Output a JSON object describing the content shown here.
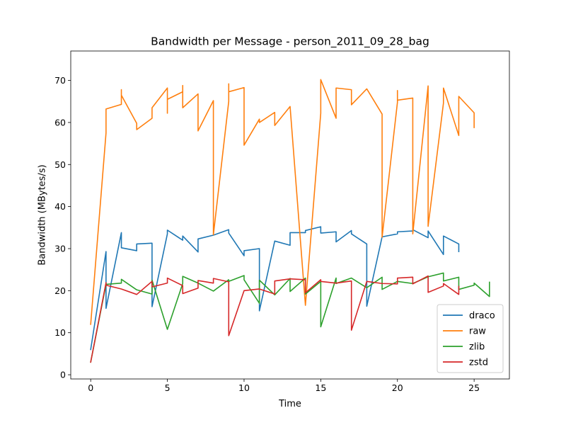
{
  "chart_data": {
    "type": "line",
    "title": "Bandwidth per Message - person_2011_09_28_bag",
    "xlabel": "Time",
    "ylabel": "Bandwidth (MBytes/s)",
    "xlim": [
      -1.3,
      27.3
    ],
    "ylim": [
      -1,
      77
    ],
    "xticks": [
      0,
      5,
      10,
      15,
      20,
      25
    ],
    "yticks": [
      0,
      10,
      20,
      30,
      40,
      50,
      60,
      70
    ],
    "grid": false,
    "legend_position": "lower right",
    "series": [
      {
        "name": "draco",
        "color": "#1f77b4",
        "x": [
          0,
          1,
          1,
          2,
          2,
          3,
          3,
          4,
          4,
          5,
          5,
          6,
          6,
          7,
          7,
          8,
          9,
          9,
          10,
          10,
          11,
          11,
          12,
          13,
          13,
          14,
          14,
          15,
          15,
          16,
          16,
          17,
          17,
          18,
          18,
          19,
          19,
          20,
          20,
          21,
          21,
          22,
          22,
          23,
          23,
          24,
          24
        ],
        "y": [
          6,
          29.3,
          15.8,
          33.8,
          30.2,
          29.5,
          31.1,
          31.3,
          16.2,
          33.5,
          34.4,
          32,
          33,
          29.2,
          32.3,
          33.2,
          34.5,
          33.7,
          28.3,
          29.5,
          30,
          15.2,
          31.8,
          30.8,
          33.8,
          33.8,
          34.3,
          35.2,
          33.7,
          34,
          31.6,
          34.3,
          33.5,
          31.1,
          16.3,
          32.8,
          32.8,
          33.5,
          34,
          34.2,
          34.5,
          32.6,
          34.2,
          28.6,
          33,
          31.1,
          29.3
        ]
      },
      {
        "name": "raw",
        "color": "#ff7f0e",
        "x": [
          0,
          1,
          1,
          1,
          2,
          2,
          2,
          3,
          3,
          4,
          4,
          5,
          5,
          5,
          6,
          6,
          6,
          7,
          7,
          8,
          8,
          9,
          9,
          9,
          10,
          10,
          11,
          11,
          12,
          12,
          13,
          14,
          15,
          15,
          16,
          16,
          17,
          17,
          18,
          19,
          19,
          20,
          20,
          20,
          21,
          21,
          22,
          22,
          23,
          23,
          24,
          24,
          25,
          25
        ],
        "y": [
          12,
          57.5,
          63,
          63.2,
          64.3,
          67.8,
          66.5,
          59.8,
          58.3,
          61,
          63.5,
          68.2,
          62.2,
          65.5,
          67.3,
          68.8,
          63.5,
          66.8,
          58,
          65.2,
          33.3,
          65,
          69.2,
          67.3,
          68.3,
          54.6,
          60.8,
          60,
          62.4,
          59.3,
          63.8,
          16.5,
          62.2,
          70.2,
          61,
          68.2,
          67.8,
          64.2,
          68,
          62,
          32.7,
          64.8,
          67.6,
          65.3,
          65.8,
          33.5,
          68.7,
          35.3,
          64.6,
          68.2,
          56.9,
          66.2,
          62.3,
          58.8
        ]
      },
      {
        "name": "zlib",
        "color": "#2ca02c",
        "x": [
          0,
          1,
          2,
          2,
          3,
          4,
          4,
          5,
          6,
          6,
          7,
          8,
          9,
          9,
          10,
          10,
          11,
          11,
          12,
          13,
          13,
          14,
          14,
          15,
          15,
          16,
          16,
          17,
          18,
          19,
          19,
          20,
          21,
          22,
          23,
          23,
          24,
          24,
          25,
          25,
          26,
          26
        ],
        "y": [
          3,
          21.5,
          21.8,
          22.7,
          20.2,
          19.2,
          22.5,
          10.8,
          21.7,
          23.4,
          21.8,
          19.9,
          22.6,
          22.2,
          23.6,
          22.6,
          17,
          22.5,
          19,
          22.9,
          19.8,
          23,
          19.2,
          22.2,
          11.4,
          23,
          21.7,
          23,
          20.7,
          23.2,
          20.3,
          22.2,
          21.7,
          23.3,
          24.2,
          22.3,
          23.2,
          20.3,
          21.3,
          21.8,
          18.6,
          22
        ]
      },
      {
        "name": "zstd",
        "color": "#d62728",
        "x": [
          0,
          1,
          1,
          2,
          3,
          4,
          4,
          5,
          5,
          6,
          6,
          7,
          7,
          8,
          8,
          9,
          9,
          10,
          11,
          12,
          12,
          13,
          14,
          14,
          15,
          15,
          16,
          17,
          17,
          18,
          19,
          20,
          20,
          21,
          21,
          22,
          22,
          23,
          23,
          24,
          24
        ],
        "y": [
          3,
          21.9,
          21.3,
          20.4,
          19.1,
          22.2,
          20.9,
          21.8,
          23,
          21.2,
          19.3,
          20.6,
          22.4,
          21.8,
          22.9,
          22.1,
          9.3,
          20,
          20.4,
          19.2,
          22.3,
          22.8,
          22.6,
          19.5,
          22.6,
          22.2,
          21.8,
          22.3,
          10.6,
          22.2,
          21.7,
          21.6,
          23,
          23.2,
          21.6,
          23.5,
          19.6,
          21.1,
          21.7,
          19.1,
          21
        ]
      }
    ]
  }
}
